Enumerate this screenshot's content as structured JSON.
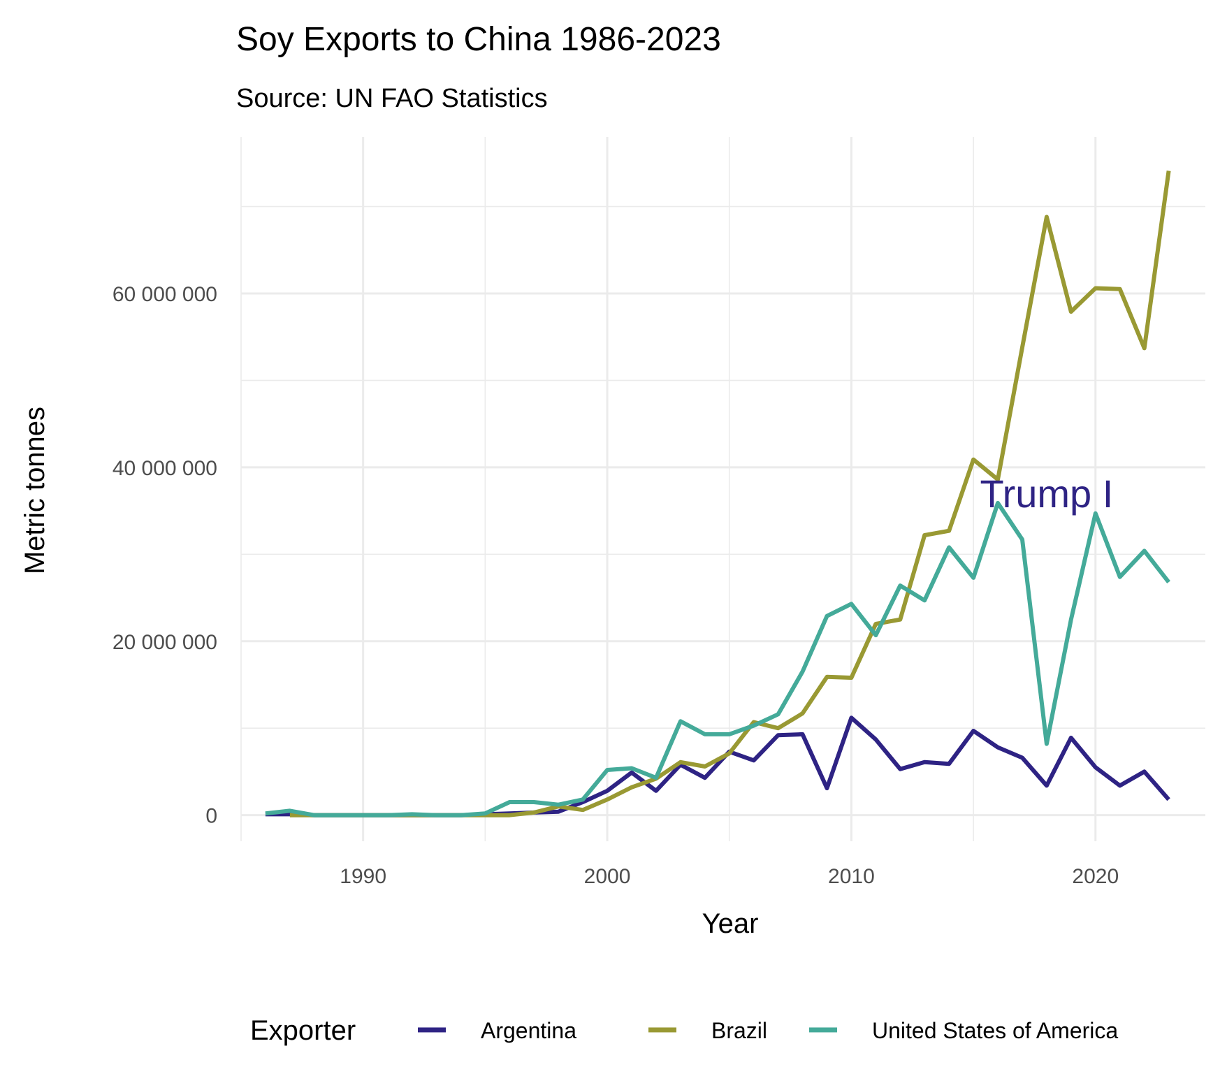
{
  "chart_data": {
    "type": "line",
    "title": "Soy Exports to China 1986-2023",
    "subtitle": "Source: UN FAO Statistics",
    "xlabel": "Year",
    "ylabel": "Metric tonnes",
    "xlim": [
      1985,
      2024.5
    ],
    "ylim": [
      -3000000,
      78000000
    ],
    "x_ticks": [
      1990,
      2000,
      2010,
      2020
    ],
    "x_minor_ticks": [
      1985,
      1995,
      2005,
      2015
    ],
    "y_ticks": [
      0,
      20000000,
      40000000,
      60000000
    ],
    "y_tick_labels": [
      "0",
      "20 000 000",
      "40 000 000",
      "60 000 000"
    ],
    "y_minor_ticks": [
      10000000,
      30000000,
      50000000,
      70000000
    ],
    "grid": true,
    "legend": {
      "title": "Exporter",
      "position": "bottom"
    },
    "annotations": [
      {
        "text": "Trump I",
        "x": 2018,
        "y": 37000000,
        "color": "#2e2384"
      }
    ],
    "series": [
      {
        "name": "Argentina",
        "color": "#2e2384",
        "x": [
          1986,
          1987,
          1988,
          1989,
          1990,
          1991,
          1992,
          1993,
          1994,
          1995,
          1996,
          1997,
          1998,
          1999,
          2000,
          2001,
          2002,
          2003,
          2004,
          2005,
          2006,
          2007,
          2008,
          2009,
          2010,
          2011,
          2012,
          2013,
          2014,
          2015,
          2016,
          2017,
          2018,
          2019,
          2020,
          2021,
          2022,
          2023
        ],
        "y": [
          100000,
          100000,
          0,
          0,
          0,
          0,
          0,
          0,
          0,
          100000,
          200000,
          300000,
          400000,
          1500000,
          2800000,
          4900000,
          2800000,
          5800000,
          4300000,
          7300000,
          6300000,
          9200000,
          9300000,
          3100000,
          11200000,
          8700000,
          5300000,
          6100000,
          5900000,
          9700000,
          7800000,
          6600000,
          3400000,
          8900000,
          5500000,
          3400000,
          5000000,
          1800000
        ]
      },
      {
        "name": "Brazil",
        "color": "#999933",
        "x": [
          1987,
          1988,
          1989,
          1990,
          1991,
          1992,
          1993,
          1994,
          1995,
          1996,
          1997,
          1998,
          1999,
          2000,
          2001,
          2002,
          2003,
          2004,
          2005,
          2006,
          2007,
          2008,
          2009,
          2010,
          2011,
          2012,
          2013,
          2014,
          2015,
          2016,
          2017,
          2018,
          2019,
          2020,
          2021,
          2022,
          2023
        ],
        "y": [
          0,
          0,
          0,
          0,
          0,
          0,
          0,
          0,
          0,
          0,
          300000,
          1000000,
          600000,
          1800000,
          3200000,
          4200000,
          6100000,
          5600000,
          7100000,
          10700000,
          10000000,
          11700000,
          15900000,
          15800000,
          22000000,
          22500000,
          32200000,
          32700000,
          40900000,
          38600000,
          53800000,
          68800000,
          57900000,
          60600000,
          60500000,
          53700000,
          74100000
        ]
      },
      {
        "name": "United States of America",
        "color": "#44aa99",
        "x": [
          1986,
          1987,
          1988,
          1989,
          1990,
          1991,
          1992,
          1993,
          1994,
          1995,
          1996,
          1997,
          1998,
          1999,
          2000,
          2001,
          2002,
          2003,
          2004,
          2005,
          2006,
          2007,
          2008,
          2009,
          2010,
          2011,
          2012,
          2013,
          2014,
          2015,
          2016,
          2017,
          2018,
          2019,
          2020,
          2021,
          2022,
          2023
        ],
        "y": [
          200000,
          500000,
          0,
          0,
          0,
          0,
          100000,
          0,
          0,
          200000,
          1500000,
          1500000,
          1200000,
          1800000,
          5200000,
          5400000,
          4300000,
          10800000,
          9300000,
          9300000,
          10300000,
          11600000,
          16500000,
          22900000,
          24300000,
          20700000,
          26400000,
          24700000,
          30800000,
          27300000,
          35900000,
          31700000,
          8200000,
          22500000,
          34700000,
          27400000,
          30400000,
          26800000
        ]
      }
    ]
  }
}
